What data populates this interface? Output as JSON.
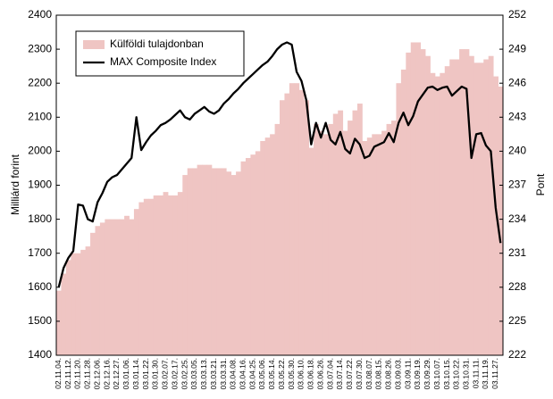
{
  "chart_data": {
    "type": "bar",
    "series": [
      {
        "name": "Külföldi tulajdonban",
        "type": "bar",
        "color": "#efc5c3",
        "values": [
          1590,
          1640,
          1680,
          1700,
          1700,
          1710,
          1720,
          1760,
          1780,
          1790,
          1800,
          1800,
          1800,
          1800,
          1810,
          1800,
          1830,
          1850,
          1860,
          1860,
          1870,
          1870,
          1880,
          1870,
          1870,
          1880,
          1930,
          1950,
          1950,
          1960,
          1960,
          1960,
          1950,
          1950,
          1950,
          1940,
          1930,
          1940,
          1970,
          1980,
          1990,
          2000,
          2030,
          2040,
          2050,
          2080,
          2150,
          2170,
          2200,
          2200,
          2180,
          2150,
          2010,
          2080,
          2060,
          2050,
          2080,
          2110,
          2120,
          2060,
          2090,
          2120,
          2140,
          2030,
          2040,
          2050,
          2050,
          2060,
          2080,
          2090,
          2200,
          2240,
          2290,
          2320,
          2320,
          2300,
          2280,
          2230,
          2220,
          2230,
          2250,
          2270,
          2270,
          2300,
          2300,
          2280,
          2260,
          2260,
          2270,
          2280,
          2220,
          2190
        ]
      },
      {
        "name": "MAX Composite Index",
        "type": "line",
        "color": "#000000",
        "axis": "y2",
        "values": [
          228,
          229.7,
          230.6,
          231.2,
          235.3,
          235.2,
          234,
          233.8,
          235.5,
          236.3,
          237.3,
          237.7,
          237.9,
          238.4,
          238.9,
          239.4,
          243,
          240.1,
          240.8,
          241.4,
          241.8,
          242.3,
          242.5,
          242.8,
          243.2,
          243.6,
          243,
          242.8,
          243.3,
          243.6,
          243.9,
          243.5,
          243.3,
          243.6,
          244.2,
          244.6,
          245.1,
          245.5,
          246,
          246.4,
          246.8,
          247.2,
          247.6,
          247.9,
          248.4,
          249,
          249.4,
          249.6,
          249.4,
          247,
          246.2,
          244.5,
          240.6,
          242.5,
          241.2,
          242.5,
          241,
          240.6,
          241.7,
          240.2,
          239.8,
          241.1,
          240.6,
          239.4,
          239.6,
          240.4,
          240.6,
          240.8,
          241.6,
          240.8,
          242.5,
          243.4,
          242.3,
          243.1,
          244.4,
          245,
          245.6,
          245.7,
          245.4,
          245.6,
          245.7,
          244.9,
          245.3,
          245.7,
          245.5,
          239.4,
          241.5,
          241.6,
          240.5,
          240,
          235,
          231.9
        ]
      }
    ],
    "categories": [
      "02.11.04.",
      null,
      "02.11.12.",
      null,
      "02.11.20.",
      null,
      "02.11.28.",
      null,
      "02.12.06.",
      null,
      "02.12.16.",
      null,
      "02.12.27.",
      null,
      "03.01.06.",
      null,
      "03.01.14.",
      null,
      "03.01.22.",
      null,
      "03.01.30.",
      null,
      "03.02.07.",
      null,
      "03.02.17.",
      null,
      "03.02.25.",
      null,
      "03.03.05.",
      null,
      "03.03.13.",
      null,
      "03.03.21.",
      null,
      "03.03.31.",
      null,
      "03.04.08.",
      null,
      "03.04.16.",
      null,
      "03.04.25.",
      null,
      "03.05.06.",
      null,
      "03.05.14.",
      null,
      "03.05.22.",
      null,
      "03.05.30.",
      null,
      "03.06.10.",
      null,
      "03.06.18.",
      null,
      "03.06.26.",
      null,
      "03.07.04.",
      null,
      "03.07.14.",
      null,
      "03.07.22.",
      null,
      "03.07.30.",
      null,
      "03.08.07.",
      null,
      "03.08.15.",
      null,
      "03.08.26.",
      null,
      "03.09.03.",
      null,
      "03.09.11.",
      null,
      "03.09.19.",
      null,
      "03.09.29.",
      null,
      "03.10.07.",
      null,
      "03.10.15.",
      null,
      "03.10.22.",
      null,
      "03.10.31.",
      null,
      "03.11.11.",
      null,
      "03.11.19.",
      null,
      "03.11.27.",
      null
    ],
    "ylabel": "Milliárd forint",
    "y2label": "Pont",
    "ylim": [
      1400,
      2400
    ],
    "yticks": [
      1400,
      1500,
      1600,
      1700,
      1800,
      1900,
      2000,
      2100,
      2200,
      2300,
      2400
    ],
    "y2lim": [
      222,
      252
    ],
    "y2ticks": [
      222,
      225,
      228,
      231,
      234,
      237,
      240,
      243,
      246,
      249,
      252
    ],
    "legend": "upper left"
  }
}
